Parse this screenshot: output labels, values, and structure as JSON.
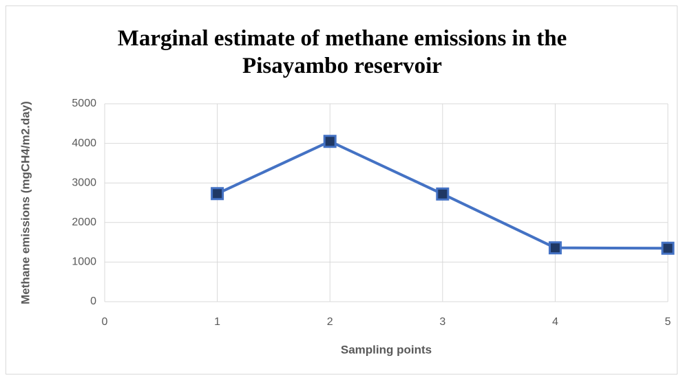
{
  "chart_data": {
    "type": "line",
    "title": "Marginal estimate of methane emissions in the Pisayambo reservoir",
    "x_label": "Sampling points",
    "y_label": "Methane emissions (mgCH4/m2.day)",
    "x": [
      1,
      2,
      3,
      4,
      5
    ],
    "values": [
      2730,
      4050,
      2720,
      1360,
      1350
    ],
    "color": "#4472c4",
    "marker_color": "#1f3864",
    "xlim": [
      0,
      5
    ],
    "xticks": [
      0,
      1,
      2,
      3,
      4,
      5
    ],
    "ylim": [
      0,
      5000
    ],
    "yticks": [
      0,
      1000,
      2000,
      3000,
      4000,
      5000
    ],
    "grid": true
  }
}
